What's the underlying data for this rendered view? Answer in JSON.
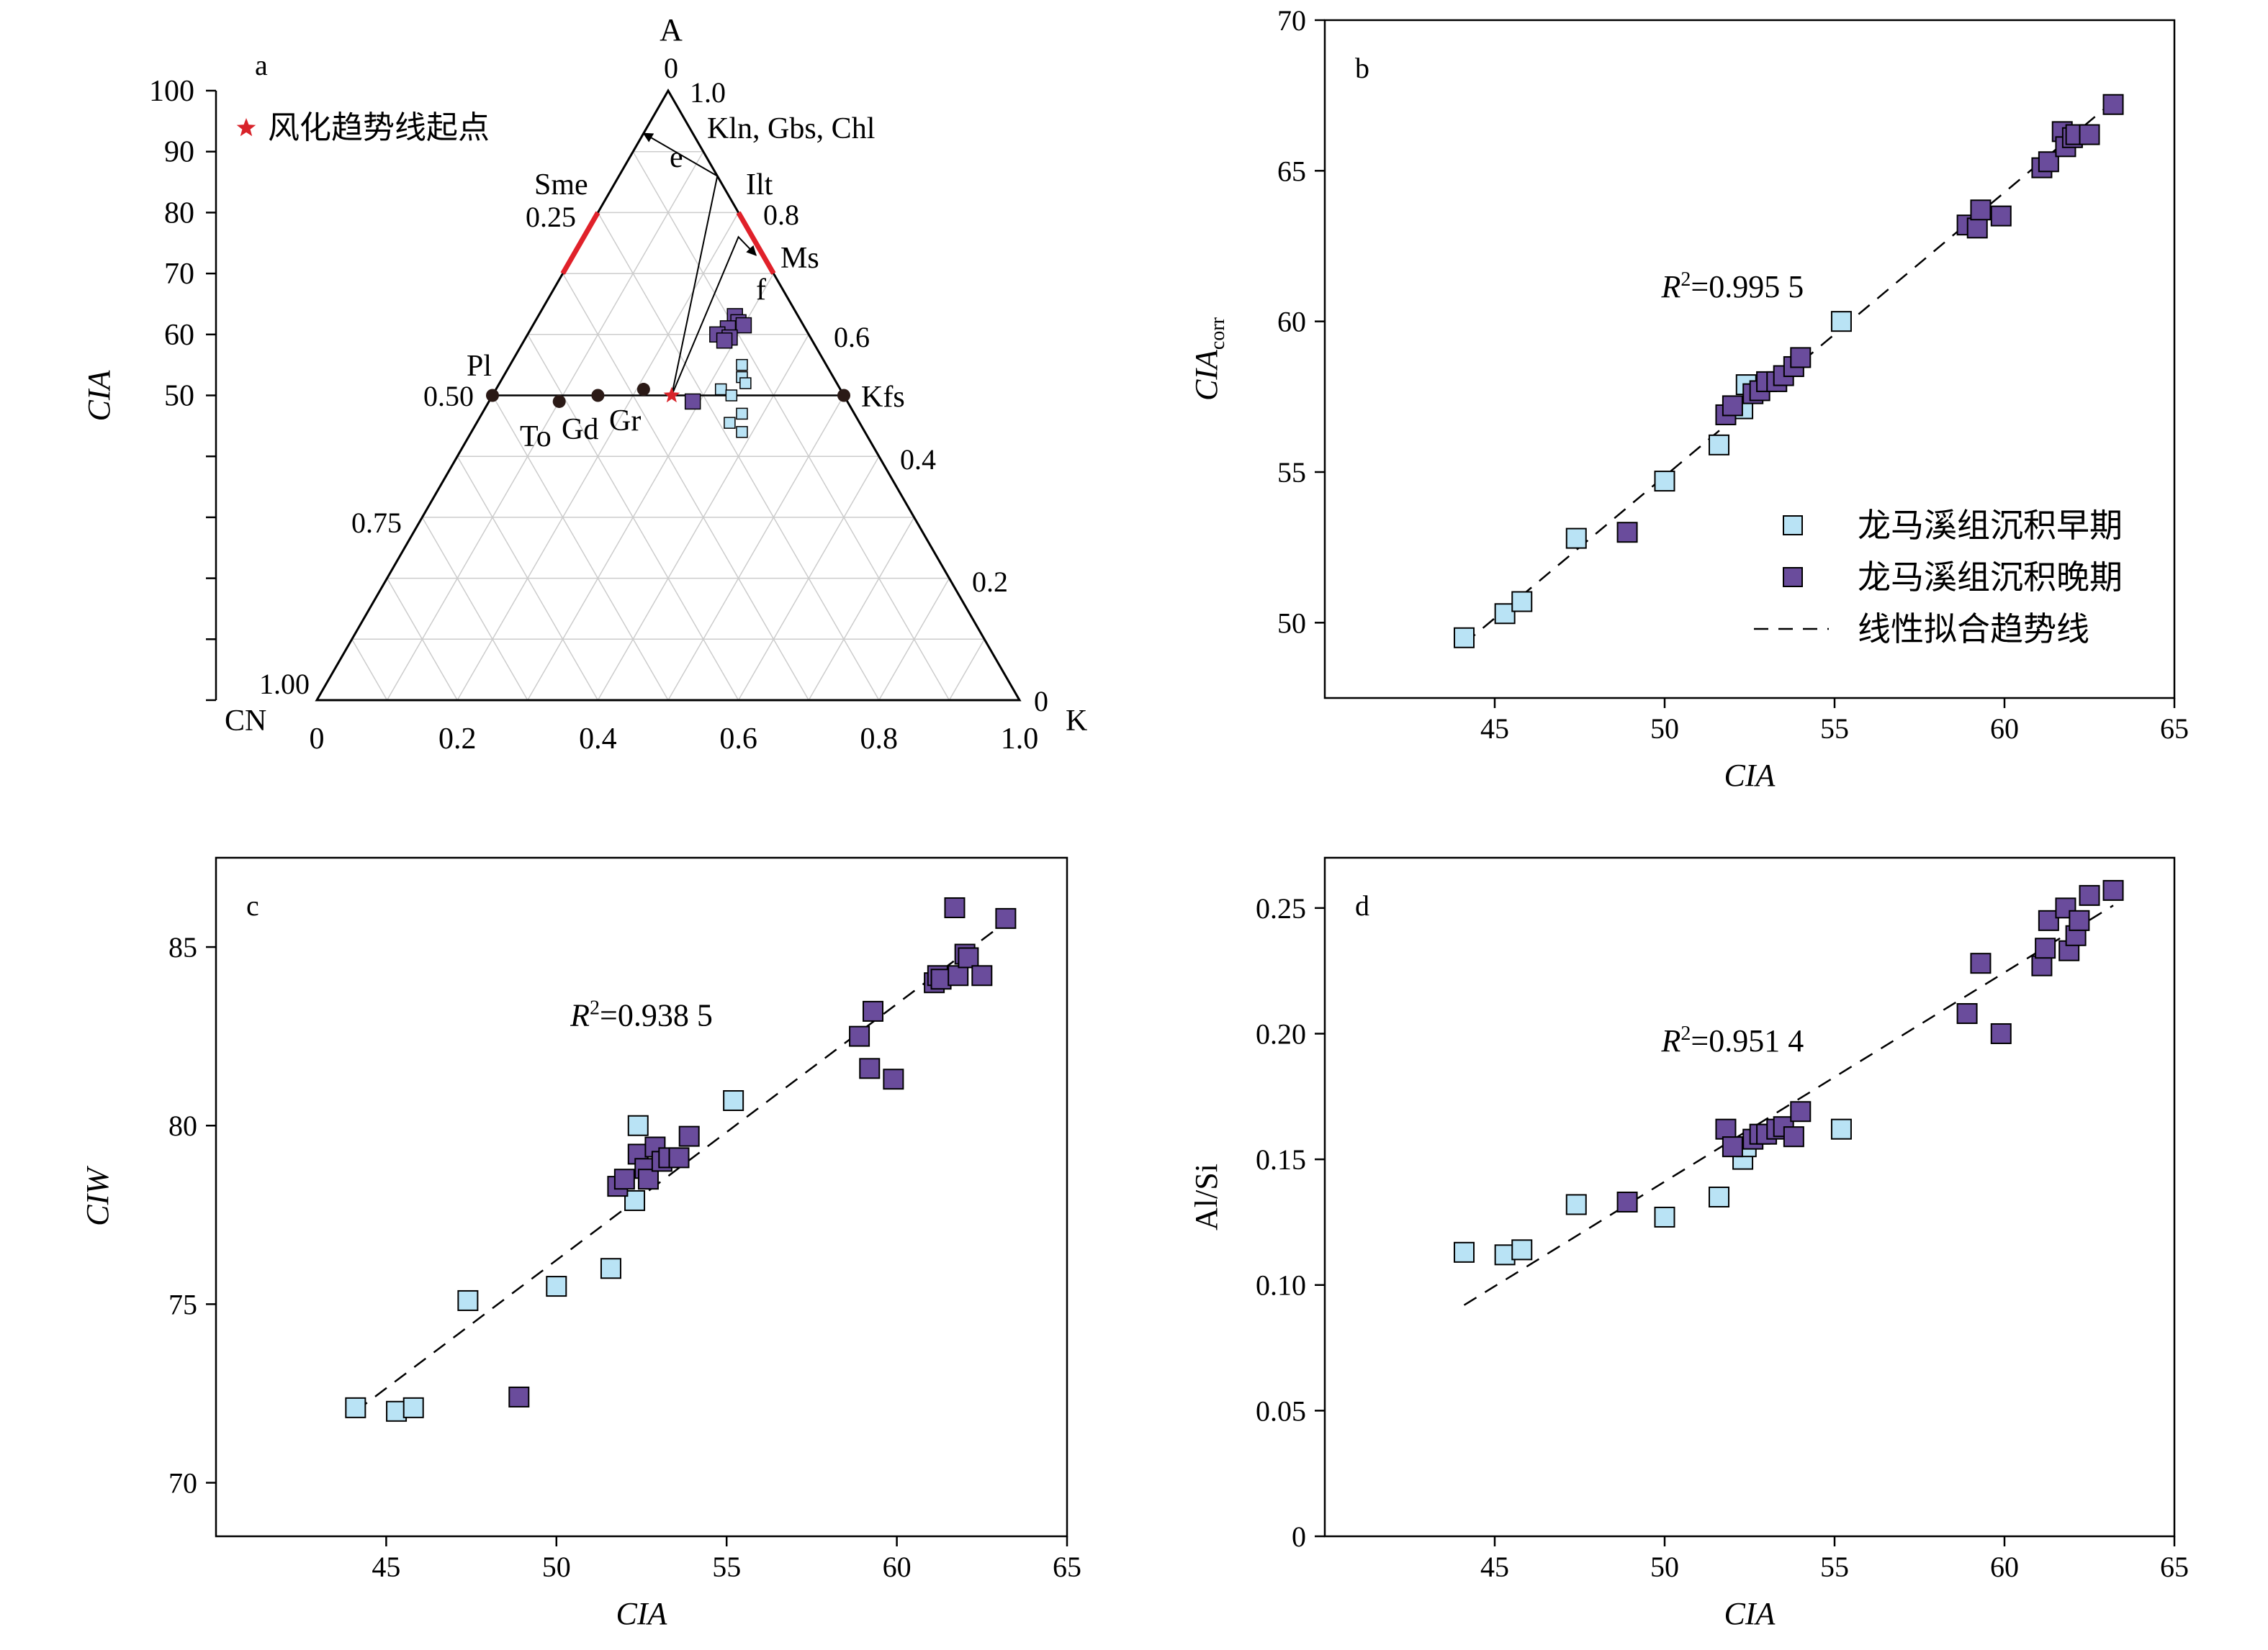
{
  "colors": {
    "early": "#b9e3f5",
    "late": "#6a4c9c",
    "star": "#d8232a",
    "red_band": "#e0212a",
    "grid": "#cccccc"
  },
  "legend_b": {
    "early": "龙马溪组沉积早期",
    "late": "龙马溪组沉积晚期",
    "trend": "线性拟合趋势线"
  },
  "chart_data": [
    {
      "id": "a",
      "type": "ternary",
      "panel_label": "a",
      "vertex_labels": {
        "top": "A",
        "left": "CN",
        "right": "K"
      },
      "left_axis_label": "CIA",
      "left_axis_ticks": [
        "100",
        "90",
        "80",
        "70",
        "60",
        "50"
      ],
      "bottom_ticks": [
        "0",
        "0.2",
        "0.4",
        "0.6",
        "0.8",
        "1.0"
      ],
      "left_edge_ticks": [
        "0.25",
        "0.50",
        "0.75",
        "1.00"
      ],
      "right_edge_ticks": [
        "1.0",
        "0.8",
        "0.6",
        "0.4",
        "0.2",
        "0"
      ],
      "top_tick": "0",
      "legend_star": "风化趋势线起点",
      "mineral_labels": [
        "Kln, Gbs, Chl",
        "Sme",
        "Ilt",
        "Ms",
        "Pl",
        "Kfs",
        "To",
        "Gd",
        "Gr",
        "e",
        "f"
      ],
      "reference_points": [
        {
          "name": "Pl",
          "A": 0.5,
          "K": 0.0
        },
        {
          "name": "Kfs",
          "A": 0.5,
          "K": 0.5
        },
        {
          "name": "To",
          "A": 0.49,
          "K": 0.1
        },
        {
          "name": "Gd",
          "A": 0.5,
          "K": 0.15
        },
        {
          "name": "Gr",
          "A": 0.51,
          "K": 0.21
        },
        {
          "name": "风化趋势线起点",
          "A": 0.5,
          "K": 0.255
        }
      ],
      "early_points": [
        {
          "A": 0.55,
          "K": 0.33
        },
        {
          "A": 0.53,
          "K": 0.34
        },
        {
          "A": 0.52,
          "K": 0.35
        },
        {
          "A": 0.51,
          "K": 0.32
        },
        {
          "A": 0.5,
          "K": 0.34
        },
        {
          "A": 0.47,
          "K": 0.37
        },
        {
          "A": 0.455,
          "K": 0.36
        },
        {
          "A": 0.44,
          "K": 0.385
        }
      ],
      "late_points": [
        {
          "A": 0.63,
          "K": 0.28
        },
        {
          "A": 0.62,
          "K": 0.29
        },
        {
          "A": 0.615,
          "K": 0.3
        },
        {
          "A": 0.61,
          "K": 0.28
        },
        {
          "A": 0.6,
          "K": 0.27
        },
        {
          "A": 0.595,
          "K": 0.29
        },
        {
          "A": 0.59,
          "K": 0.285
        },
        {
          "A": 0.49,
          "K": 0.29
        }
      ]
    },
    {
      "id": "b",
      "type": "scatter",
      "panel_label": "b",
      "xlabel": "CIA",
      "ylabel": "CIA",
      "ylabel_sub": "corr",
      "xlim": [
        40,
        65
      ],
      "ylim": [
        47.5,
        70
      ],
      "xticks": [
        45,
        50,
        55,
        60,
        65
      ],
      "yticks": [
        50,
        55,
        60,
        65,
        70
      ],
      "r2_prefix": "R",
      "r2_sup": "2",
      "r2_value": "=0.995 5",
      "trend": [
        [
          44.1,
          49.3
        ],
        [
          63.2,
          67.3
        ]
      ],
      "series": [
        {
          "name": "龙马溪组沉积早期",
          "x": [
            44.1,
            45.3,
            45.8,
            47.4,
            50.0,
            51.6,
            52.3,
            52.4,
            55.2
          ],
          "y": [
            49.5,
            50.3,
            50.7,
            52.8,
            54.7,
            55.9,
            57.1,
            57.9,
            60.0
          ]
        },
        {
          "name": "龙马溪组沉积晚期",
          "x": [
            48.9,
            51.8,
            52.0,
            52.6,
            52.8,
            53.0,
            53.3,
            53.5,
            53.8,
            54.0,
            58.9,
            59.2,
            59.3,
            59.9,
            61.1,
            61.3,
            61.7,
            61.8,
            62.0,
            62.1,
            62.5,
            63.2
          ],
          "y": [
            53.0,
            56.9,
            57.2,
            57.6,
            57.7,
            58.0,
            58.0,
            58.2,
            58.5,
            58.8,
            63.2,
            63.1,
            63.7,
            63.5,
            65.1,
            65.3,
            66.3,
            65.8,
            66.1,
            66.2,
            66.2,
            67.2
          ]
        }
      ]
    },
    {
      "id": "c",
      "type": "scatter",
      "panel_label": "c",
      "xlabel": "CIA",
      "ylabel": "CIW",
      "xlim": [
        40,
        65
      ],
      "ylim": [
        68.5,
        87.5
      ],
      "xticks": [
        45,
        50,
        55,
        60,
        65
      ],
      "yticks": [
        70,
        75,
        80,
        85
      ],
      "r2_prefix": "R",
      "r2_sup": "2",
      "r2_value": "=0.938 5",
      "trend": [
        [
          44.1,
          72.0
        ],
        [
          63.2,
          85.7
        ]
      ],
      "series": [
        {
          "name": "龙马溪组沉积早期",
          "x": [
            44.1,
            45.3,
            45.8,
            47.4,
            50.0,
            51.6,
            52.3,
            52.4,
            55.2
          ],
          "y": [
            72.1,
            72.0,
            72.1,
            75.1,
            75.5,
            76.0,
            77.9,
            80.0,
            80.7
          ]
        },
        {
          "name": "龙马溪组沉积晚期",
          "x": [
            48.9,
            51.8,
            52.0,
            52.4,
            52.6,
            52.7,
            52.9,
            53.1,
            53.3,
            53.6,
            53.9,
            58.9,
            59.2,
            59.3,
            59.9,
            61.1,
            61.2,
            61.3,
            61.7,
            61.8,
            62.0,
            62.1,
            62.5,
            63.2
          ],
          "y": [
            72.4,
            78.3,
            78.5,
            79.2,
            78.8,
            78.5,
            79.4,
            79.0,
            79.1,
            79.1,
            79.7,
            82.5,
            81.6,
            83.2,
            81.3,
            84.0,
            84.2,
            84.1,
            86.1,
            84.2,
            84.8,
            84.7,
            84.2,
            85.8
          ]
        }
      ]
    },
    {
      "id": "d",
      "type": "scatter",
      "panel_label": "d",
      "xlabel": "CIA",
      "ylabel": "Al/Si",
      "xlim": [
        40,
        65
      ],
      "ylim": [
        0,
        0.27
      ],
      "xticks": [
        45,
        50,
        55,
        60,
        65
      ],
      "yticks": [
        "0",
        "0.05",
        "0.10",
        "0.15",
        "0.20",
        "0.25"
      ],
      "r2_prefix": "R",
      "r2_sup": "2",
      "r2_value": "=0.951 4",
      "trend": [
        [
          44.1,
          0.092
        ],
        [
          63.2,
          0.251
        ]
      ],
      "series": [
        {
          "name": "龙马溪组沉积早期",
          "x": [
            44.1,
            45.3,
            45.8,
            47.4,
            50.0,
            51.6,
            52.3,
            52.4,
            55.2
          ],
          "y": [
            0.113,
            0.112,
            0.114,
            0.132,
            0.127,
            0.135,
            0.15,
            0.155,
            0.162
          ]
        },
        {
          "name": "龙马溪组沉积晚期",
          "x": [
            48.9,
            51.8,
            52.0,
            52.6,
            52.8,
            53.0,
            53.3,
            53.5,
            53.8,
            54.0,
            58.9,
            59.3,
            59.9,
            61.1,
            61.2,
            61.3,
            61.8,
            61.9,
            62.1,
            62.2,
            62.5,
            63.2
          ],
          "y": [
            0.133,
            0.162,
            0.155,
            0.158,
            0.16,
            0.16,
            0.162,
            0.163,
            0.159,
            0.169,
            0.208,
            0.228,
            0.2,
            0.227,
            0.234,
            0.245,
            0.25,
            0.233,
            0.239,
            0.245,
            0.255,
            0.257
          ]
        }
      ]
    }
  ]
}
